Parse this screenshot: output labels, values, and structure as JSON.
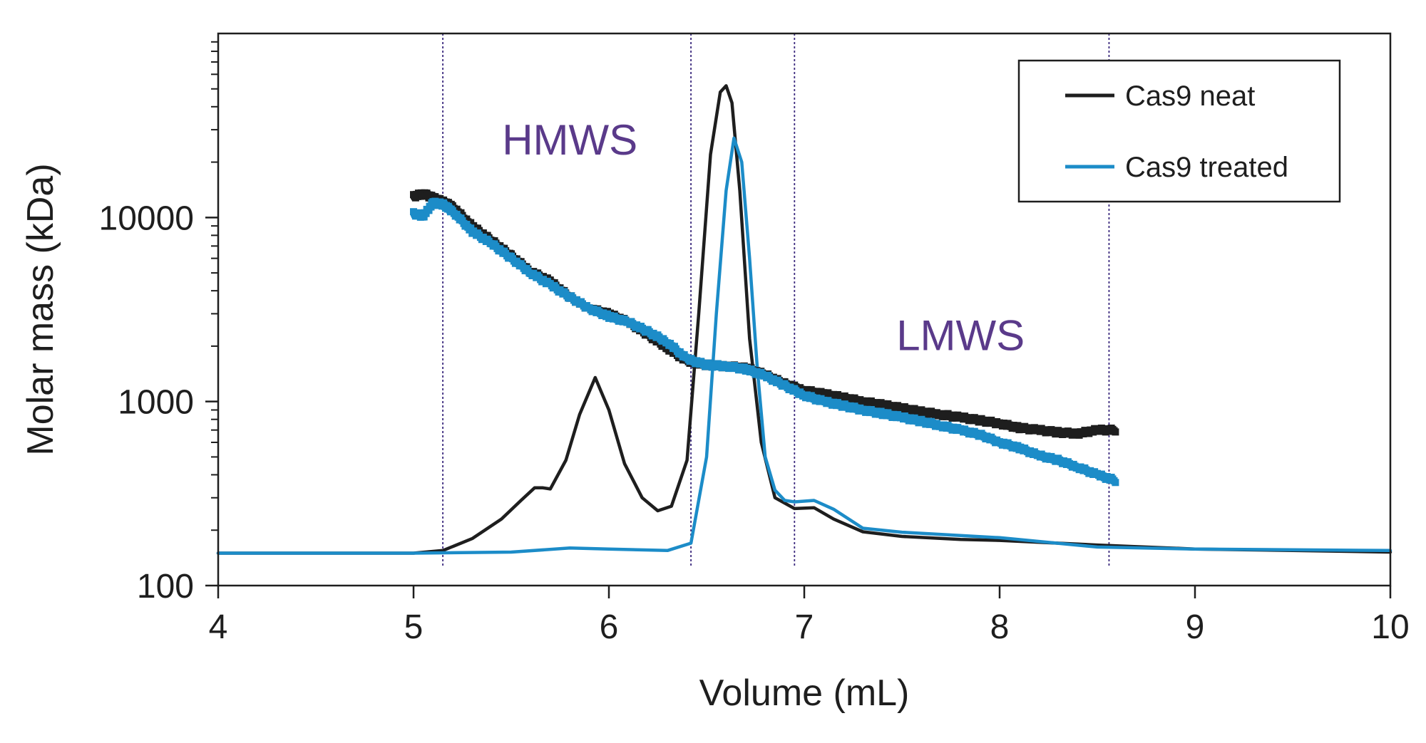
{
  "chart_data": {
    "type": "line",
    "title": "",
    "xlabel": "Volume (mL)",
    "ylabel": "Molar mass (kDa)",
    "xlim": [
      4,
      10
    ],
    "ylim": [
      100,
      100000
    ],
    "yscale": "log",
    "x_ticks": [
      4,
      5,
      6,
      7,
      8,
      9,
      10
    ],
    "x_tick_labels": [
      "4",
      "5",
      "6",
      "7",
      "8",
      "9",
      "10"
    ],
    "y_ticks": [
      100,
      1000,
      10000
    ],
    "y_tick_labels": [
      "100",
      "1000",
      "10000"
    ],
    "grid": false,
    "legend_position": "top-right",
    "region_lines_x": [
      5.15,
      6.42,
      6.95,
      8.56
    ],
    "region_line_color": "#3c2a7e",
    "annotations": [
      {
        "text": "HMWS",
        "x": 5.8,
        "y": 22000,
        "color": "#5a3a8a"
      },
      {
        "text": "LMWS",
        "x": 7.8,
        "y": 1900,
        "color": "#5a3a8a"
      }
    ],
    "series": [
      {
        "name": "Cas9 neat",
        "color": "#1e1e1e",
        "kind": "trace",
        "x": [
          4.0,
          4.5,
          5.0,
          5.15,
          5.3,
          5.45,
          5.55,
          5.62,
          5.66,
          5.7,
          5.78,
          5.85,
          5.93,
          6.0,
          6.08,
          6.17,
          6.25,
          6.32,
          6.4,
          6.46,
          6.52,
          6.57,
          6.6,
          6.63,
          6.67,
          6.72,
          6.78,
          6.85,
          6.95,
          7.05,
          7.15,
          7.3,
          7.5,
          7.8,
          8.0,
          8.5,
          9.0,
          9.5,
          10.0
        ],
        "y": [
          150,
          150,
          150,
          155,
          180,
          230,
          290,
          340,
          340,
          335,
          480,
          850,
          1350,
          900,
          460,
          300,
          255,
          270,
          480,
          3000,
          22000,
          48000,
          52000,
          42000,
          14000,
          2200,
          600,
          300,
          262,
          265,
          230,
          196,
          185,
          178,
          176,
          166,
          158,
          155,
          152
        ]
      },
      {
        "name": "Cas9 treated",
        "color": "#1c8cc8",
        "kind": "trace",
        "x": [
          4.0,
          5.0,
          5.5,
          5.8,
          6.0,
          6.3,
          6.42,
          6.5,
          6.55,
          6.6,
          6.64,
          6.68,
          6.72,
          6.76,
          6.8,
          6.85,
          6.9,
          6.95,
          7.05,
          7.15,
          7.3,
          7.5,
          8.0,
          8.5,
          9.0,
          10.0
        ],
        "y": [
          150,
          150,
          152,
          160,
          158,
          155,
          170,
          500,
          3000,
          14000,
          27000,
          20000,
          6000,
          1500,
          500,
          330,
          290,
          285,
          290,
          260,
          205,
          195,
          182,
          162,
          158,
          155
        ]
      },
      {
        "name": "Cas9 neat molar mass",
        "color": "#1e1e1e",
        "kind": "markers",
        "x": [
          5.0,
          5.05,
          5.1,
          5.15,
          5.2,
          5.3,
          5.4,
          5.5,
          5.6,
          5.7,
          5.8,
          5.9,
          6.0,
          6.1,
          6.2,
          6.3,
          6.4,
          6.5,
          6.6,
          6.7,
          6.8,
          6.9,
          7.0,
          7.1,
          7.2,
          7.3,
          7.4,
          7.5,
          7.6,
          7.7,
          7.8,
          7.9,
          8.0,
          8.1,
          8.2,
          8.3,
          8.4,
          8.5,
          8.6
        ],
        "y": [
          13000,
          13500,
          12800,
          12200,
          11500,
          9000,
          7500,
          6200,
          5100,
          4500,
          3700,
          3200,
          3000,
          2700,
          2300,
          1950,
          1650,
          1580,
          1560,
          1520,
          1400,
          1250,
          1150,
          1100,
          1050,
          1000,
          960,
          920,
          880,
          850,
          820,
          790,
          760,
          720,
          700,
          680,
          670,
          700,
          700
        ]
      },
      {
        "name": "Cas9 treated molar mass",
        "color": "#1c8cc8",
        "kind": "markers",
        "x": [
          5.0,
          5.05,
          5.1,
          5.15,
          5.2,
          5.3,
          5.4,
          5.5,
          5.6,
          5.7,
          5.8,
          5.9,
          6.0,
          6.1,
          6.2,
          6.3,
          6.4,
          6.5,
          6.6,
          6.7,
          6.8,
          6.9,
          7.0,
          7.1,
          7.2,
          7.3,
          7.4,
          7.5,
          7.6,
          7.7,
          7.8,
          7.9,
          8.0,
          8.1,
          8.2,
          8.3,
          8.4,
          8.5,
          8.6
        ],
        "y": [
          10500,
          10200,
          12000,
          11800,
          10800,
          8400,
          7200,
          6000,
          5000,
          4300,
          3700,
          3200,
          2900,
          2700,
          2400,
          2100,
          1700,
          1580,
          1560,
          1500,
          1380,
          1220,
          1080,
          1000,
          950,
          900,
          860,
          820,
          780,
          740,
          700,
          660,
          600,
          560,
          510,
          480,
          440,
          400,
          370
        ]
      }
    ],
    "legend": [
      {
        "label": "Cas9 neat",
        "color": "#1e1e1e"
      },
      {
        "label": "Cas9 treated",
        "color": "#1c8cc8"
      }
    ]
  }
}
